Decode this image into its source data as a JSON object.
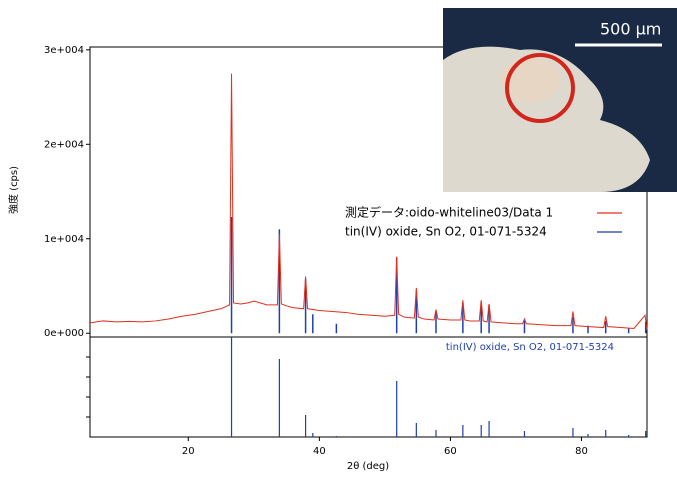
{
  "chart_data": [
    {
      "type": "xrd-profile",
      "ylabel": "強度 (cps)",
      "xlim": [
        5,
        90
      ],
      "ylim": [
        -400,
        30300
      ],
      "yticks": [
        {
          "value": 0,
          "label": "0e+000"
        },
        {
          "value": 10000,
          "label": "1e+004"
        },
        {
          "value": 20000,
          "label": "2e+004"
        },
        {
          "value": 30000,
          "label": "3e+004"
        }
      ],
      "series": [
        {
          "name": "tin(IV) oxide, Sn O2, 01-071-5324",
          "color": "#1f3fb0",
          "style": "sticks",
          "x": [
            26.6,
            33.9,
            37.9,
            39.0,
            42.6,
            51.8,
            54.8,
            57.8,
            61.9,
            64.7,
            65.9,
            71.3,
            78.7,
            81.0,
            83.7,
            87.2,
            89.8
          ],
          "values": [
            12300,
            11000,
            5700,
            2000,
            1000,
            8000,
            4500,
            2300,
            3200,
            3300,
            3000,
            1400,
            1700,
            800,
            1300,
            500,
            1200
          ]
        },
        {
          "name": "測定データ:oido-whiteline03/Data 1",
          "color": "#e0301e",
          "style": "line",
          "x": [
            5,
            7,
            9,
            11,
            13,
            15,
            17,
            19,
            21,
            23,
            25,
            26.3,
            26.6,
            26.9,
            28,
            29,
            30,
            31,
            32,
            33.6,
            33.9,
            34.2,
            35,
            36,
            37.6,
            37.9,
            38.2,
            40,
            42,
            44,
            46,
            48,
            50,
            51.5,
            51.8,
            52.1,
            53,
            54.5,
            54.8,
            55.1,
            56,
            57.5,
            57.8,
            58.1,
            60,
            61.6,
            61.9,
            62.2,
            63,
            64.4,
            64.7,
            65,
            65.6,
            65.9,
            66.2,
            68,
            70,
            71,
            71.3,
            71.6,
            74,
            76,
            78.4,
            78.7,
            79,
            81,
            83.4,
            83.7,
            84,
            86,
            88,
            89.7,
            90
          ],
          "values": [
            1100,
            1300,
            1200,
            1250,
            1200,
            1300,
            1500,
            1800,
            2000,
            2300,
            2600,
            3000,
            27500,
            3200,
            3100,
            3200,
            3400,
            3200,
            3000,
            3000,
            10500,
            3100,
            2900,
            2700,
            2600,
            6000,
            2600,
            2400,
            2300,
            2200,
            2000,
            1900,
            1800,
            1900,
            8100,
            2000,
            1700,
            1600,
            4800,
            1700,
            1500,
            1400,
            2500,
            1500,
            1400,
            1400,
            3500,
            1400,
            1300,
            1300,
            3500,
            1300,
            1200,
            3100,
            1200,
            1100,
            1000,
            1000,
            1500,
            1000,
            900,
            800,
            800,
            2300,
            800,
            700,
            600,
            1800,
            700,
            600,
            500,
            1900,
            400
          ]
        }
      ]
    },
    {
      "type": "reference-sticks",
      "annotation": "tin(IV) oxide, Sn O2, 01-071-5324",
      "xlabel": "2θ (deg)",
      "xlim": [
        5,
        90
      ],
      "ylim": [
        0,
        100
      ],
      "xticks": [
        20,
        40,
        60,
        80
      ],
      "yticks": [
        20,
        40,
        60,
        80
      ],
      "color": "#1f3fb0",
      "x": [
        26.6,
        33.9,
        37.9,
        39.0,
        42.6,
        51.8,
        54.8,
        57.8,
        61.9,
        64.7,
        65.9,
        71.3,
        78.7,
        81.0,
        83.7,
        87.2,
        89.8
      ],
      "values": [
        100,
        78,
        22,
        4,
        1,
        56,
        14,
        7,
        12,
        12,
        16,
        6,
        9,
        3,
        7,
        2,
        6
      ]
    }
  ],
  "inset": {
    "scale_label": "500 μm"
  }
}
